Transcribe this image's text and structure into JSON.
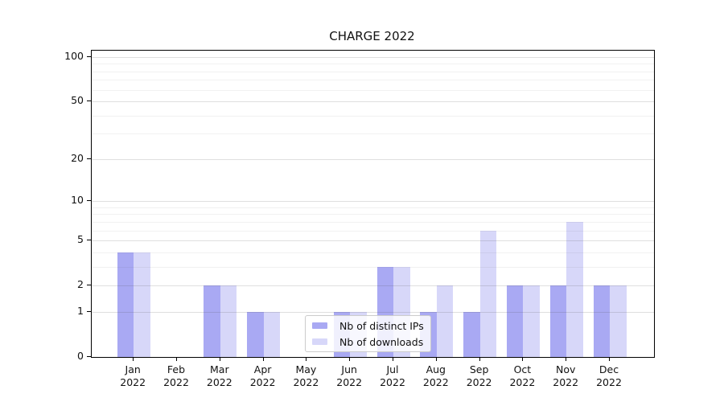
{
  "chart_data": {
    "type": "bar",
    "title": "CHARGE 2022",
    "categories": [
      "Jan",
      "Feb",
      "Mar",
      "Apr",
      "May",
      "Jun",
      "Jul",
      "Aug",
      "Sep",
      "Oct",
      "Nov",
      "Dec"
    ],
    "category_year": "2022",
    "series": [
      {
        "name": "Nb of distinct IPs",
        "color": "#a9a9f3",
        "values": [
          4,
          0,
          2,
          1,
          0,
          1,
          3,
          1,
          1,
          2,
          2,
          2
        ]
      },
      {
        "name": "Nb of downloads",
        "color": "#d7d7f9",
        "values": [
          4,
          0,
          2,
          1,
          0,
          1,
          3,
          2,
          6,
          2,
          7,
          2
        ]
      }
    ],
    "xlabel": "",
    "ylabel": "",
    "y_axis": {
      "scale": "log1p",
      "tick_values": [
        0,
        1,
        2,
        5,
        10,
        20,
        50,
        100
      ],
      "tick_labels": [
        "0",
        "1",
        "2",
        "5",
        "10",
        "20",
        "50",
        "100"
      ],
      "minor_gridline_values": [
        3,
        4,
        6,
        7,
        8,
        9,
        30,
        40,
        60,
        70,
        80,
        90
      ],
      "top_value": 110
    },
    "grid": true,
    "legend": {
      "position": "lower-center",
      "entries": [
        "Nb of distinct IPs",
        "Nb of downloads"
      ]
    },
    "colors": {
      "series_dark": "#a9a9f3",
      "series_light": "#d7d7f9",
      "axis": "#000000",
      "text": "#111111"
    }
  }
}
